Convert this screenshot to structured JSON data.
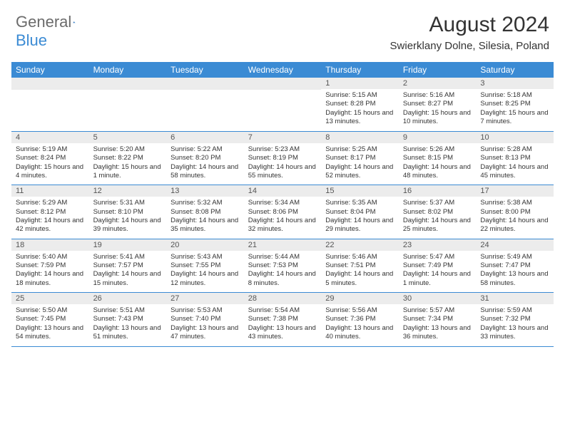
{
  "brand": {
    "part1": "General",
    "part2": "Blue"
  },
  "title": "August 2024",
  "location": "Swierklany Dolne, Silesia, Poland",
  "colors": {
    "header_bg": "#3b8bd4",
    "daynum_bg": "#ececec",
    "text": "#333333",
    "logo_gray": "#6b6b6b"
  },
  "day_names": [
    "Sunday",
    "Monday",
    "Tuesday",
    "Wednesday",
    "Thursday",
    "Friday",
    "Saturday"
  ],
  "weeks": [
    [
      {
        "empty": true
      },
      {
        "empty": true
      },
      {
        "empty": true
      },
      {
        "empty": true
      },
      {
        "num": "1",
        "sunrise": "5:15 AM",
        "sunset": "8:28 PM",
        "daylight": "15 hours and 13 minutes."
      },
      {
        "num": "2",
        "sunrise": "5:16 AM",
        "sunset": "8:27 PM",
        "daylight": "15 hours and 10 minutes."
      },
      {
        "num": "3",
        "sunrise": "5:18 AM",
        "sunset": "8:25 PM",
        "daylight": "15 hours and 7 minutes."
      }
    ],
    [
      {
        "num": "4",
        "sunrise": "5:19 AM",
        "sunset": "8:24 PM",
        "daylight": "15 hours and 4 minutes."
      },
      {
        "num": "5",
        "sunrise": "5:20 AM",
        "sunset": "8:22 PM",
        "daylight": "15 hours and 1 minute."
      },
      {
        "num": "6",
        "sunrise": "5:22 AM",
        "sunset": "8:20 PM",
        "daylight": "14 hours and 58 minutes."
      },
      {
        "num": "7",
        "sunrise": "5:23 AM",
        "sunset": "8:19 PM",
        "daylight": "14 hours and 55 minutes."
      },
      {
        "num": "8",
        "sunrise": "5:25 AM",
        "sunset": "8:17 PM",
        "daylight": "14 hours and 52 minutes."
      },
      {
        "num": "9",
        "sunrise": "5:26 AM",
        "sunset": "8:15 PM",
        "daylight": "14 hours and 48 minutes."
      },
      {
        "num": "10",
        "sunrise": "5:28 AM",
        "sunset": "8:13 PM",
        "daylight": "14 hours and 45 minutes."
      }
    ],
    [
      {
        "num": "11",
        "sunrise": "5:29 AM",
        "sunset": "8:12 PM",
        "daylight": "14 hours and 42 minutes."
      },
      {
        "num": "12",
        "sunrise": "5:31 AM",
        "sunset": "8:10 PM",
        "daylight": "14 hours and 39 minutes."
      },
      {
        "num": "13",
        "sunrise": "5:32 AM",
        "sunset": "8:08 PM",
        "daylight": "14 hours and 35 minutes."
      },
      {
        "num": "14",
        "sunrise": "5:34 AM",
        "sunset": "8:06 PM",
        "daylight": "14 hours and 32 minutes."
      },
      {
        "num": "15",
        "sunrise": "5:35 AM",
        "sunset": "8:04 PM",
        "daylight": "14 hours and 29 minutes."
      },
      {
        "num": "16",
        "sunrise": "5:37 AM",
        "sunset": "8:02 PM",
        "daylight": "14 hours and 25 minutes."
      },
      {
        "num": "17",
        "sunrise": "5:38 AM",
        "sunset": "8:00 PM",
        "daylight": "14 hours and 22 minutes."
      }
    ],
    [
      {
        "num": "18",
        "sunrise": "5:40 AM",
        "sunset": "7:59 PM",
        "daylight": "14 hours and 18 minutes."
      },
      {
        "num": "19",
        "sunrise": "5:41 AM",
        "sunset": "7:57 PM",
        "daylight": "14 hours and 15 minutes."
      },
      {
        "num": "20",
        "sunrise": "5:43 AM",
        "sunset": "7:55 PM",
        "daylight": "14 hours and 12 minutes."
      },
      {
        "num": "21",
        "sunrise": "5:44 AM",
        "sunset": "7:53 PM",
        "daylight": "14 hours and 8 minutes."
      },
      {
        "num": "22",
        "sunrise": "5:46 AM",
        "sunset": "7:51 PM",
        "daylight": "14 hours and 5 minutes."
      },
      {
        "num": "23",
        "sunrise": "5:47 AM",
        "sunset": "7:49 PM",
        "daylight": "14 hours and 1 minute."
      },
      {
        "num": "24",
        "sunrise": "5:49 AM",
        "sunset": "7:47 PM",
        "daylight": "13 hours and 58 minutes."
      }
    ],
    [
      {
        "num": "25",
        "sunrise": "5:50 AM",
        "sunset": "7:45 PM",
        "daylight": "13 hours and 54 minutes."
      },
      {
        "num": "26",
        "sunrise": "5:51 AM",
        "sunset": "7:43 PM",
        "daylight": "13 hours and 51 minutes."
      },
      {
        "num": "27",
        "sunrise": "5:53 AM",
        "sunset": "7:40 PM",
        "daylight": "13 hours and 47 minutes."
      },
      {
        "num": "28",
        "sunrise": "5:54 AM",
        "sunset": "7:38 PM",
        "daylight": "13 hours and 43 minutes."
      },
      {
        "num": "29",
        "sunrise": "5:56 AM",
        "sunset": "7:36 PM",
        "daylight": "13 hours and 40 minutes."
      },
      {
        "num": "30",
        "sunrise": "5:57 AM",
        "sunset": "7:34 PM",
        "daylight": "13 hours and 36 minutes."
      },
      {
        "num": "31",
        "sunrise": "5:59 AM",
        "sunset": "7:32 PM",
        "daylight": "13 hours and 33 minutes."
      }
    ]
  ],
  "labels": {
    "sunrise": "Sunrise:",
    "sunset": "Sunset:",
    "daylight": "Daylight:"
  }
}
